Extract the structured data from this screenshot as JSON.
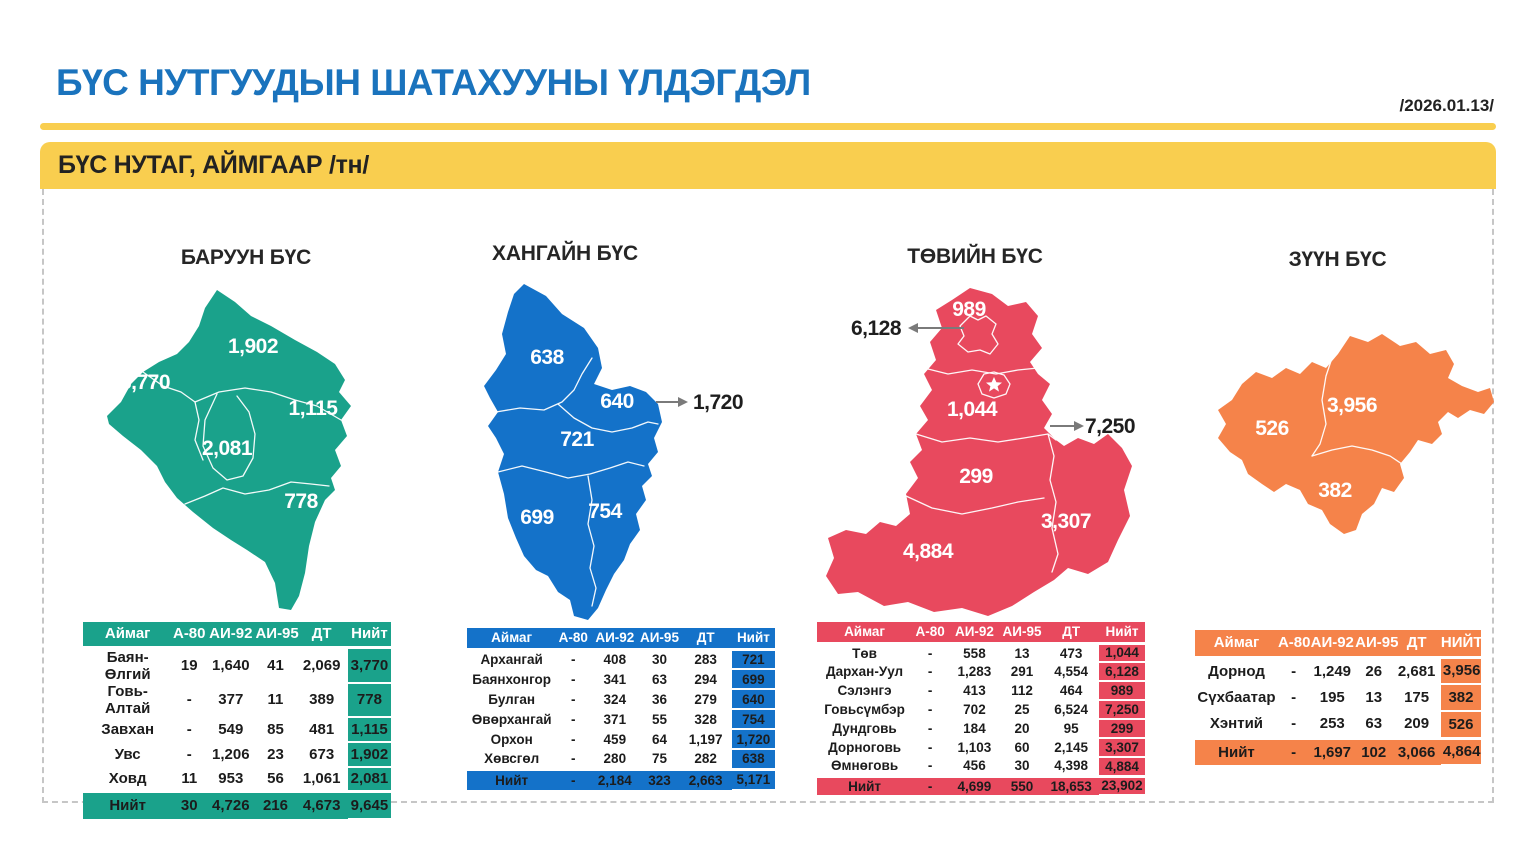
{
  "page": {
    "title": "БҮС НУТГУУДЫН ШАТАХУУНЫ ҮЛДЭГДЭЛ",
    "date": "/2026.01.13/",
    "band_label": "БҮС НУТАГ, АЙМГААР /тн/",
    "accent_yellow": "#f9ce4f",
    "title_blue": "#1a73bd"
  },
  "regions": [
    {
      "id": "west",
      "title": "БАРУУН БҮС",
      "color": "#1aa28b",
      "map_labels": [
        "1,902",
        "3,770",
        "1,115",
        "2,081",
        "778"
      ],
      "callouts": [],
      "table": {
        "columns": [
          "Аймаг",
          "А-80",
          "АИ-92",
          "АИ-95",
          "ДТ",
          "Нийт"
        ],
        "rows": [
          [
            "Баян-Өлгий",
            "19",
            "1,640",
            "41",
            "2,069",
            "3,770"
          ],
          [
            "Говь-Алтай",
            "-",
            "377",
            "11",
            "389",
            "778"
          ],
          [
            "Завхан",
            "-",
            "549",
            "85",
            "481",
            "1,115"
          ],
          [
            "Увс",
            "-",
            "1,206",
            "23",
            "673",
            "1,902"
          ],
          [
            "Ховд",
            "11",
            "953",
            "56",
            "1,061",
            "2,081"
          ]
        ],
        "total": [
          "Нийт",
          "30",
          "4,726",
          "216",
          "4,673",
          "9,645"
        ]
      }
    },
    {
      "id": "khangai",
      "title": "ХАНГАЙН БҮС",
      "color": "#1472c9",
      "map_labels": [
        "638",
        "640",
        "721",
        "699",
        "754"
      ],
      "callouts": [
        "1,720"
      ],
      "table": {
        "columns": [
          "Аймаг",
          "А-80",
          "АИ-92",
          "АИ-95",
          "ДТ",
          "Нийт"
        ],
        "rows": [
          [
            "Архангай",
            "-",
            "408",
            "30",
            "283",
            "721"
          ],
          [
            "Баянхонгор",
            "-",
            "341",
            "63",
            "294",
            "699"
          ],
          [
            "Булган",
            "-",
            "324",
            "36",
            "279",
            "640"
          ],
          [
            "Өвөрхангай",
            "-",
            "371",
            "55",
            "328",
            "754"
          ],
          [
            "Орхон",
            "-",
            "459",
            "64",
            "1,197",
            "1,720"
          ],
          [
            "Хөвсгөл",
            "-",
            "280",
            "75",
            "282",
            "638"
          ]
        ],
        "total": [
          "Нийт",
          "-",
          "2,184",
          "323",
          "2,663",
          "5,171"
        ]
      }
    },
    {
      "id": "central",
      "title": "ТӨВИЙН БҮС",
      "color": "#e8495e",
      "map_labels": [
        "989",
        "1,044",
        "299",
        "3,307",
        "4,884"
      ],
      "callouts": [
        "6,128",
        "7,250"
      ],
      "table": {
        "columns": [
          "Аймаг",
          "А-80",
          "АИ-92",
          "АИ-95",
          "ДТ",
          "Нийт"
        ],
        "rows": [
          [
            "Төв",
            "-",
            "558",
            "13",
            "473",
            "1,044"
          ],
          [
            "Дархан-Уул",
            "-",
            "1,283",
            "291",
            "4,554",
            "6,128"
          ],
          [
            "Сэлэнгэ",
            "-",
            "413",
            "112",
            "464",
            "989"
          ],
          [
            "Говьсүмбэр",
            "-",
            "702",
            "25",
            "6,524",
            "7,250"
          ],
          [
            "Дундговь",
            "-",
            "184",
            "20",
            "95",
            "299"
          ],
          [
            "Дорноговь",
            "-",
            "1,103",
            "60",
            "2,145",
            "3,307"
          ],
          [
            "Өмнөговь",
            "-",
            "456",
            "30",
            "4,398",
            "4,884"
          ]
        ],
        "total": [
          "Нийт",
          "-",
          "4,699",
          "550",
          "18,653",
          "23,902"
        ]
      }
    },
    {
      "id": "east",
      "title": "ЗҮҮН БҮС",
      "color": "#f5834a",
      "map_labels": [
        "526",
        "3,956",
        "382"
      ],
      "callouts": [],
      "table": {
        "columns": [
          "Аймаг",
          "А-80",
          "АИ-92",
          "АИ-95",
          "ДТ",
          "НИЙТ"
        ],
        "rows": [
          [
            "Дорнод",
            "-",
            "1,249",
            "26",
            "2,681",
            "3,956"
          ],
          [
            "Сүхбаатар",
            "-",
            "195",
            "13",
            "175",
            "382"
          ],
          [
            "Хэнтий",
            "-",
            "253",
            "63",
            "209",
            "526"
          ]
        ],
        "total": [
          "Нийт",
          "-",
          "1,697",
          "102",
          "3,066",
          "4,864"
        ]
      }
    }
  ],
  "chart_data": [
    {
      "type": "table",
      "title": "БАРУУН БҮС",
      "columns": [
        "Аймаг",
        "А-80",
        "АИ-92",
        "АИ-95",
        "ДТ",
        "Нийт"
      ],
      "rows": [
        [
          "Баян-Өлгий",
          19,
          1640,
          41,
          2069,
          3770
        ],
        [
          "Говь-Алтай",
          null,
          377,
          11,
          389,
          778
        ],
        [
          "Завхан",
          null,
          549,
          85,
          481,
          1115
        ],
        [
          "Увс",
          null,
          1206,
          23,
          673,
          1902
        ],
        [
          "Ховд",
          11,
          953,
          56,
          1061,
          2081
        ]
      ],
      "total": [
        "Нийт",
        30,
        4726,
        216,
        4673,
        9645
      ]
    },
    {
      "type": "table",
      "title": "ХАНГАЙН БҮС",
      "columns": [
        "Аймаг",
        "А-80",
        "АИ-92",
        "АИ-95",
        "ДТ",
        "Нийт"
      ],
      "rows": [
        [
          "Архангай",
          null,
          408,
          30,
          283,
          721
        ],
        [
          "Баянхонгор",
          null,
          341,
          63,
          294,
          699
        ],
        [
          "Булган",
          null,
          324,
          36,
          279,
          640
        ],
        [
          "Өвөрхангай",
          null,
          371,
          55,
          328,
          754
        ],
        [
          "Орхон",
          null,
          459,
          64,
          1197,
          1720
        ],
        [
          "Хөвсгөл",
          null,
          280,
          75,
          282,
          638
        ]
      ],
      "total": [
        "Нийт",
        null,
        2184,
        323,
        2663,
        5171
      ]
    },
    {
      "type": "table",
      "title": "ТӨВИЙН БҮС",
      "columns": [
        "Аймаг",
        "А-80",
        "АИ-92",
        "АИ-95",
        "ДТ",
        "Нийт"
      ],
      "rows": [
        [
          "Төв",
          null,
          558,
          13,
          473,
          1044
        ],
        [
          "Дархан-Уул",
          null,
          1283,
          291,
          4554,
          6128
        ],
        [
          "Сэлэнгэ",
          null,
          413,
          112,
          464,
          989
        ],
        [
          "Говьсүмбэр",
          null,
          702,
          25,
          6524,
          7250
        ],
        [
          "Дундговь",
          null,
          184,
          20,
          95,
          299
        ],
        [
          "Дорноговь",
          null,
          1103,
          60,
          2145,
          3307
        ],
        [
          "Өмнөговь",
          null,
          456,
          30,
          4398,
          4884
        ]
      ],
      "total": [
        "Нийт",
        null,
        4699,
        550,
        18653,
        23902
      ]
    },
    {
      "type": "table",
      "title": "ЗҮҮН БҮС",
      "columns": [
        "Аймаг",
        "А-80",
        "АИ-92",
        "АИ-95",
        "ДТ",
        "НИЙТ"
      ],
      "rows": [
        [
          "Дорнод",
          null,
          1249,
          26,
          2681,
          3956
        ],
        [
          "Сүхбаатар",
          null,
          195,
          13,
          175,
          382
        ],
        [
          "Хэнтий",
          null,
          253,
          63,
          209,
          526
        ]
      ],
      "total": [
        "Нийт",
        null,
        1697,
        102,
        3066,
        4864
      ]
    }
  ]
}
